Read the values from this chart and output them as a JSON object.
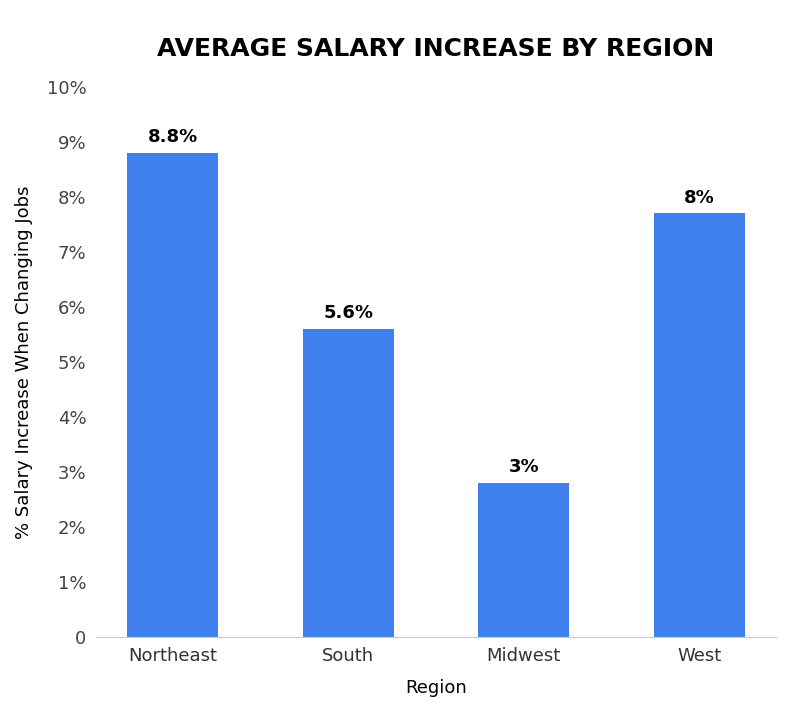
{
  "categories": [
    "Northeast",
    "South",
    "Midwest",
    "West"
  ],
  "values": [
    8.8,
    5.6,
    2.8,
    7.7
  ],
  "bar_labels": [
    "8.8%",
    "5.6%",
    "3%",
    "8%"
  ],
  "bar_color": "#4080EC",
  "title": "AVERAGE SALARY INCREASE BY REGION",
  "xlabel": "Region",
  "ylabel": "% Salary Increase When Changing Jobs",
  "ylim": [
    0,
    10
  ],
  "yticks": [
    0,
    1,
    2,
    3,
    4,
    5,
    6,
    7,
    8,
    9,
    10
  ],
  "ytick_labels": [
    "0",
    "1%",
    "2%",
    "3%",
    "4%",
    "5%",
    "6%",
    "7%",
    "8%",
    "9%",
    "10%"
  ],
  "title_fontsize": 18,
  "axis_label_fontsize": 13,
  "tick_fontsize": 13,
  "bar_label_fontsize": 13,
  "background_color": "#ffffff"
}
